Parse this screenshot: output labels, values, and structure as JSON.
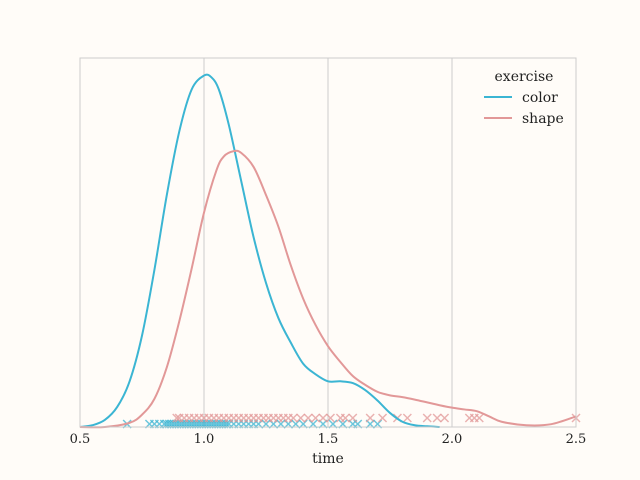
{
  "chart_data": {
    "type": "line",
    "title": "",
    "xlabel": "time",
    "ylabel": "",
    "xlim": [
      0.5,
      2.5
    ],
    "ylim": [
      0,
      1.05
    ],
    "xticks": [
      0.5,
      1.0,
      1.5,
      2.0,
      2.5
    ],
    "xtick_labels": [
      "0.5",
      "1.0",
      "1.5",
      "2.0",
      "2.5"
    ],
    "grid": "vertical",
    "legend": {
      "title": "exercise",
      "placement": "top-right"
    },
    "series": [
      {
        "name": "color",
        "color": "#3bb5d3",
        "x": [
          0.5,
          0.55,
          0.6,
          0.65,
          0.7,
          0.75,
          0.8,
          0.85,
          0.9,
          0.95,
          1.0,
          1.03,
          1.06,
          1.1,
          1.15,
          1.2,
          1.25,
          1.3,
          1.35,
          1.4,
          1.45,
          1.5,
          1.55,
          1.6,
          1.65,
          1.7,
          1.75,
          1.8,
          1.85,
          1.9,
          1.95
        ],
        "y": [
          0.0,
          0.005,
          0.02,
          0.057,
          0.13,
          0.26,
          0.447,
          0.66,
          0.84,
          0.96,
          1.0,
          0.995,
          0.96,
          0.86,
          0.7,
          0.54,
          0.41,
          0.31,
          0.24,
          0.18,
          0.15,
          0.13,
          0.13,
          0.125,
          0.105,
          0.075,
          0.04,
          0.015,
          0.005,
          0.002,
          0.0
        ]
      },
      {
        "name": "shape",
        "color": "#e29898",
        "x": [
          0.5,
          0.6,
          0.7,
          0.75,
          0.8,
          0.85,
          0.9,
          0.95,
          1.0,
          1.05,
          1.08,
          1.12,
          1.15,
          1.2,
          1.25,
          1.3,
          1.35,
          1.4,
          1.45,
          1.5,
          1.55,
          1.6,
          1.65,
          1.7,
          1.75,
          1.8,
          1.85,
          1.9,
          1.95,
          2.0,
          2.05,
          2.1,
          2.15,
          2.2,
          2.3,
          2.4,
          2.5
        ],
        "y": [
          0.0,
          0.0,
          0.012,
          0.035,
          0.08,
          0.17,
          0.3,
          0.45,
          0.61,
          0.73,
          0.77,
          0.785,
          0.78,
          0.74,
          0.66,
          0.57,
          0.46,
          0.365,
          0.29,
          0.23,
          0.185,
          0.145,
          0.12,
          0.1,
          0.09,
          0.085,
          0.078,
          0.07,
          0.062,
          0.055,
          0.05,
          0.045,
          0.03,
          0.015,
          0.005,
          0.008,
          0.03
        ]
      }
    ],
    "rug": {
      "color": [
        0.69,
        0.78,
        0.8,
        0.82,
        0.84,
        0.85,
        0.86,
        0.87,
        0.88,
        0.89,
        0.9,
        0.91,
        0.92,
        0.93,
        0.94,
        0.95,
        0.96,
        0.97,
        0.98,
        0.99,
        1.0,
        1.01,
        1.02,
        1.03,
        1.04,
        1.05,
        1.06,
        1.07,
        1.08,
        1.09,
        1.1,
        1.12,
        1.14,
        1.16,
        1.18,
        1.2,
        1.22,
        1.25,
        1.28,
        1.31,
        1.34,
        1.37,
        1.4,
        1.44,
        1.48,
        1.52,
        1.56,
        1.6,
        1.62,
        1.67,
        1.7
      ],
      "shape": [
        0.89,
        0.9,
        0.92,
        0.94,
        0.96,
        0.98,
        1.0,
        1.02,
        1.04,
        1.06,
        1.08,
        1.1,
        1.12,
        1.14,
        1.16,
        1.18,
        1.2,
        1.22,
        1.24,
        1.26,
        1.28,
        1.3,
        1.32,
        1.34,
        1.36,
        1.39,
        1.42,
        1.45,
        1.48,
        1.51,
        1.55,
        1.57,
        1.6,
        1.67,
        1.72,
        1.78,
        1.82,
        1.9,
        1.94,
        1.97,
        2.07,
        2.09,
        2.11,
        2.5
      ]
    }
  }
}
